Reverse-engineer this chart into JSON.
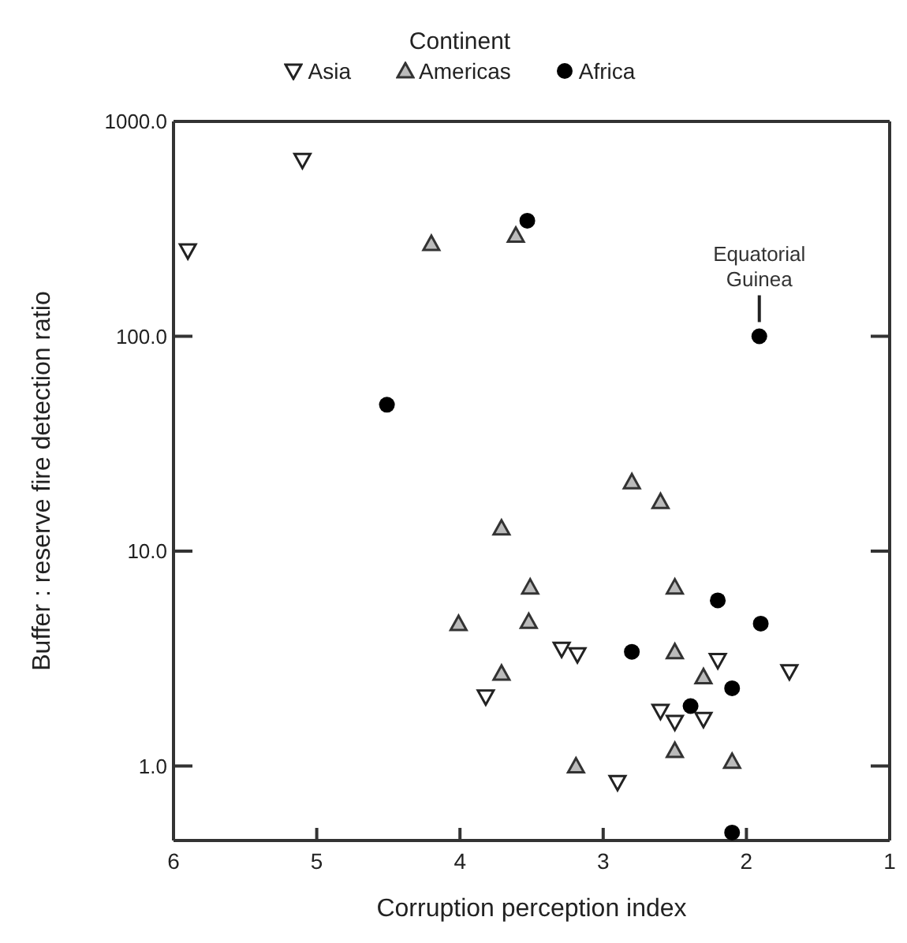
{
  "chart_data": {
    "type": "scatter",
    "xlabel": "Corruption perception index",
    "ylabel": "Buffer : reserve fire detection ratio",
    "legend_title": "Continent",
    "legend": "top",
    "log": "y",
    "grid": false,
    "xlim": [
      6,
      1
    ],
    "xticks": [
      6,
      5,
      4,
      3,
      2,
      1
    ],
    "ylim": [
      0.45,
      1000
    ],
    "yticks": [
      {
        "value": 1,
        "label": "1.0"
      },
      {
        "value": 10,
        "label": "10.0"
      },
      {
        "value": 100,
        "label": "100.0"
      },
      {
        "value": 1000,
        "label": "1000.0"
      }
    ],
    "series": [
      {
        "name": "Asia",
        "color": "#222222",
        "marker": "triangle-down",
        "x": [
          5.9,
          5.1,
          3.29,
          3.18,
          2.2,
          1.7,
          3.82,
          2.6,
          2.5,
          2.3,
          2.9
        ],
        "values": [
          250,
          660,
          3.5,
          3.3,
          3.1,
          2.75,
          2.1,
          1.8,
          1.6,
          1.65,
          0.84
        ]
      },
      {
        "name": "Americas",
        "color": "#333333",
        "marker": "triangle",
        "x": [
          4.2,
          3.61,
          2.8,
          2.6,
          3.71,
          3.51,
          2.5,
          4.01,
          3.52,
          2.5,
          3.71,
          2.3,
          2.5,
          3.19,
          2.1
        ],
        "values": [
          270,
          295,
          21,
          17,
          12.8,
          6.8,
          6.8,
          4.6,
          4.7,
          3.4,
          2.7,
          2.6,
          1.18,
          1.0,
          1.05
        ]
      },
      {
        "name": "Africa",
        "color": "#000000",
        "marker": "circle",
        "x": [
          3.53,
          1.91,
          4.51,
          2.2,
          1.9,
          2.8,
          2.1,
          2.39,
          2.1
        ],
        "values": [
          345,
          100,
          48,
          5.9,
          4.6,
          3.4,
          2.3,
          1.9,
          0.49
        ]
      }
    ],
    "annotations": [
      {
        "text": "Equatorial Guinea",
        "x": 1.91,
        "y": 100
      }
    ]
  }
}
